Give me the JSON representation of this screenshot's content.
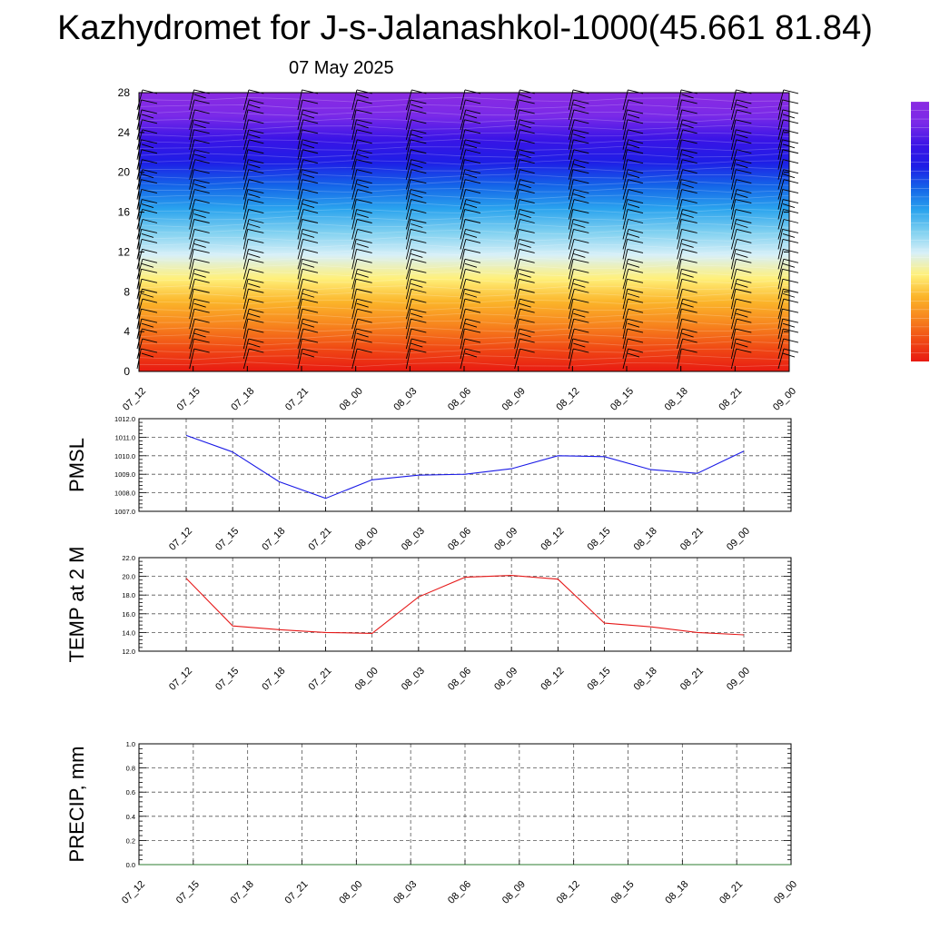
{
  "title": "Kazhydromet for J-s-Jalanashkol-1000(45.661 81.84)",
  "subtitle": "07 May 2025",
  "colors": {
    "pmsl_line": "#1a1ae6",
    "temp_line": "#e61a1a",
    "precip_line": "#2e7d32",
    "grid": "#555555",
    "barb": "#000000",
    "contour": "#ffffff",
    "colormap": [
      "#e81a12",
      "#f04a14",
      "#f7851e",
      "#fbb52a",
      "#fff07a",
      "#d8f0f8",
      "#7fd0f0",
      "#2aa3ee",
      "#1464e8",
      "#1e1ee6",
      "#3a14e6",
      "#7a2ae8",
      "#8a2be2"
    ]
  },
  "chart_data": [
    {
      "type": "heatmap",
      "name_hint": "vertical profile with wind barbs",
      "x_ticks": [
        "07_12",
        "07_15",
        "07_18",
        "07_21",
        "08_00",
        "08_03",
        "08_06",
        "08_09",
        "08_12",
        "08_15",
        "08_18",
        "08_21",
        "09_00"
      ],
      "y_ticks": [
        "0",
        "4",
        "8",
        "12",
        "16",
        "20",
        "24",
        "28"
      ],
      "ylim": [
        0,
        28
      ],
      "barb_levels": [
        1,
        2,
        3,
        4,
        5,
        6,
        7,
        8,
        9,
        10,
        11,
        12,
        13,
        14,
        15,
        16,
        17,
        18,
        19,
        20,
        21,
        22,
        23,
        24,
        25,
        26,
        27
      ],
      "colorbar": "vertical, right edge, no labels",
      "grid": false
    },
    {
      "type": "line",
      "ylabel": "PMSL",
      "x_ticks": [
        "07_12",
        "07_15",
        "07_18",
        "07_21",
        "08_00",
        "08_03",
        "08_06",
        "08_09",
        "08_12",
        "08_15",
        "08_18",
        "08_21",
        "09_00"
      ],
      "y_ticks": [
        "1007.0",
        "1008.0",
        "1009.0",
        "1010.0",
        "1011.0",
        "1012.0"
      ],
      "ylim": [
        1007.0,
        1012.0
      ],
      "grid": true,
      "series": [
        {
          "values": [
            1011.1,
            1010.2,
            1008.6,
            1007.7,
            1008.7,
            1008.95,
            1009.0,
            1009.3,
            1010.0,
            1009.95,
            1009.25,
            1009.05,
            1010.25
          ]
        }
      ]
    },
    {
      "type": "line",
      "ylabel": "TEMP at 2 M",
      "x_ticks": [
        "07_12",
        "07_15",
        "07_18",
        "07_21",
        "08_00",
        "08_03",
        "08_06",
        "08_09",
        "08_12",
        "08_15",
        "08_18",
        "08_21",
        "09_00"
      ],
      "y_ticks": [
        "12.0",
        "14.0",
        "16.0",
        "18.0",
        "20.0",
        "22.0"
      ],
      "ylim": [
        12.0,
        22.0
      ],
      "grid": true,
      "series": [
        {
          "values": [
            19.8,
            14.7,
            14.3,
            14.0,
            13.9,
            17.8,
            19.9,
            20.1,
            19.7,
            15.0,
            14.6,
            14.0,
            13.75
          ]
        }
      ]
    },
    {
      "type": "line",
      "ylabel": "PRECIP, mm",
      "x_ticks": [
        "07_12",
        "07_15",
        "07_18",
        "07_21",
        "08_00",
        "08_03",
        "08_06",
        "08_09",
        "08_12",
        "08_15",
        "08_18",
        "08_21",
        "09_00"
      ],
      "y_ticks": [
        "0.0",
        "0.2",
        "0.4",
        "0.6",
        "0.8",
        "1.0"
      ],
      "ylim": [
        0.0,
        1.0
      ],
      "grid": true,
      "series": [
        {
          "values": [
            0,
            0,
            0,
            0,
            0,
            0,
            0,
            0,
            0,
            0,
            0,
            0,
            0
          ]
        }
      ]
    }
  ]
}
